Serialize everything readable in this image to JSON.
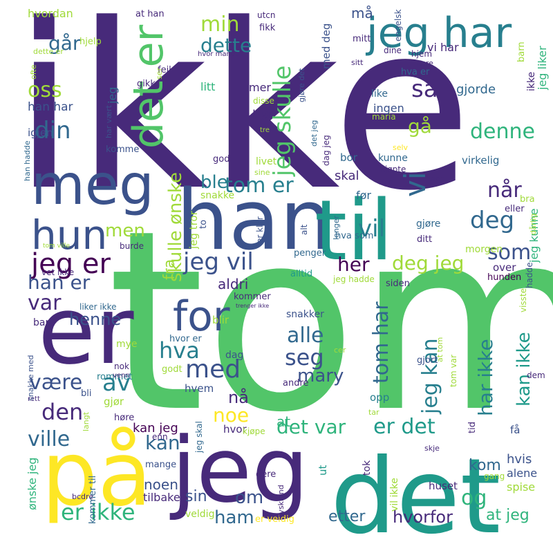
{
  "palette": {
    "dark_purple": "#472a7a",
    "indigo": "#3b528b",
    "slate_blue": "#31688e",
    "teal_blue": "#277f8e",
    "teal": "#1f9a8a",
    "green_teal": "#2fb47c",
    "green": "#52c569",
    "lime": "#a0da39",
    "yellow": "#fde725",
    "deep_purple": "#440154"
  },
  "words": [
    {
      "text": "ikke",
      "color": "#472a7a"
    },
    {
      "text": "tom",
      "color": "#52c569"
    },
    {
      "text": "jeg",
      "color": "#472a7a"
    },
    {
      "text": "det",
      "color": "#1f9a8a"
    },
    {
      "text": "på",
      "color": "#fde725"
    },
    {
      "text": "er",
      "color": "#472a7a"
    },
    {
      "text": "han",
      "color": "#3b528b"
    },
    {
      "text": "til",
      "color": "#1f9a8a"
    },
    {
      "text": "meg",
      "color": "#3b528b"
    },
    {
      "text": "jeg har",
      "color": "#277f8e"
    },
    {
      "text": "det er",
      "color": "#52c569"
    },
    {
      "text": "hun",
      "color": "#3b528b"
    },
    {
      "text": "for",
      "color": "#3b528b"
    },
    {
      "text": "jeg er",
      "color": "#440154"
    },
    {
      "text": "jeg skulle",
      "color": "#52c569"
    },
    {
      "text": "skulle ønske",
      "color": "#a0da39"
    },
    {
      "text": "jeg vil",
      "color": "#3b528b"
    },
    {
      "text": "tom er",
      "color": "#277f8e"
    },
    {
      "text": "min",
      "color": "#a0da39"
    },
    {
      "text": "dette",
      "color": "#277f8e"
    },
    {
      "text": "din",
      "color": "#31688e"
    },
    {
      "text": "oss",
      "color": "#a0da39"
    },
    {
      "text": "går",
      "color": "#31688e"
    },
    {
      "text": "så",
      "color": "#472a7a"
    },
    {
      "text": "vi",
      "color": "#31688e"
    },
    {
      "text": "deg",
      "color": "#31688e"
    },
    {
      "text": "vil",
      "color": "#277f8e"
    },
    {
      "text": "når",
      "color": "#472a7a"
    },
    {
      "text": "som",
      "color": "#3b528b"
    },
    {
      "text": "denne",
      "color": "#2fb47c"
    },
    {
      "text": "gå",
      "color": "#a0da39"
    },
    {
      "text": "deg jeg",
      "color": "#a0da39"
    },
    {
      "text": "her",
      "color": "#440154"
    },
    {
      "text": "han er",
      "color": "#3b528b"
    },
    {
      "text": "var",
      "color": "#472a7a"
    },
    {
      "text": "henne",
      "color": "#3b528b"
    },
    {
      "text": "men",
      "color": "#a0da39"
    },
    {
      "text": "ble",
      "color": "#277f8e"
    },
    {
      "text": "fra",
      "color": "#a0da39"
    },
    {
      "text": "aldri",
      "color": "#472a7a"
    },
    {
      "text": "hva",
      "color": "#277f8e"
    },
    {
      "text": "med",
      "color": "#3b528b"
    },
    {
      "text": "av",
      "color": "#277f8e"
    },
    {
      "text": "alle",
      "color": "#31688e"
    },
    {
      "text": "seg",
      "color": "#3b528b"
    },
    {
      "text": "mary",
      "color": "#3b528b"
    },
    {
      "text": "tom har",
      "color": "#31688e"
    },
    {
      "text": "jeg kan",
      "color": "#277f8e"
    },
    {
      "text": "har ikke",
      "color": "#277f8e"
    },
    {
      "text": "kan ikke",
      "color": "#1f9a8a"
    },
    {
      "text": "være",
      "color": "#3b528b"
    },
    {
      "text": "den",
      "color": "#472a7a"
    },
    {
      "text": "noe",
      "color": "#fde725"
    },
    {
      "text": "nå",
      "color": "#472a7a"
    },
    {
      "text": "ville",
      "color": "#31688e"
    },
    {
      "text": "det var",
      "color": "#2fb47c"
    },
    {
      "text": "er det",
      "color": "#1f9a8a"
    },
    {
      "text": "kan",
      "color": "#31688e"
    },
    {
      "text": "om",
      "color": "#3b528b"
    },
    {
      "text": "og",
      "color": "#2fb47c"
    },
    {
      "text": "er ikke",
      "color": "#2fb47c"
    },
    {
      "text": "ham",
      "color": "#31688e"
    },
    {
      "text": "etter",
      "color": "#31688e"
    },
    {
      "text": "hvorfor",
      "color": "#472a7a"
    },
    {
      "text": "at jeg",
      "color": "#2fb47c"
    },
    {
      "text": "kom",
      "color": "#31688e"
    },
    {
      "text": "hvis",
      "color": "#3b528b"
    },
    {
      "text": "alene",
      "color": "#3b528b"
    },
    {
      "text": "spise",
      "color": "#a0da39"
    },
    {
      "text": "sin",
      "color": "#3b528b"
    },
    {
      "text": "noen",
      "color": "#3b528b"
    },
    {
      "text": "tilbake",
      "color": "#472a7a"
    },
    {
      "text": "kan jeg",
      "color": "#440154"
    },
    {
      "text": "hvordan",
      "color": "#a0da39"
    },
    {
      "text": "hjelp",
      "color": "#a0da39"
    },
    {
      "text": "at han",
      "color": "#472a7a"
    },
    {
      "text": "utcn",
      "color": "#472a7a"
    },
    {
      "text": "fikk",
      "color": "#472a7a"
    },
    {
      "text": "med deg",
      "color": "#3b528b"
    },
    {
      "text": "mitt",
      "color": "#472a7a"
    },
    {
      "text": "engelsk",
      "color": "#3b528b"
    },
    {
      "text": "vi har",
      "color": "#472a7a"
    },
    {
      "text": "barn",
      "color": "#a0da39"
    },
    {
      "text": "jeg liker",
      "color": "#2fb47c"
    },
    {
      "text": "feil",
      "color": "#472a7a"
    },
    {
      "text": "gikk",
      "color": "#472a7a"
    },
    {
      "text": "mer",
      "color": "#472a7a"
    },
    {
      "text": "bør",
      "color": "#472a7a"
    },
    {
      "text": "ingen",
      "color": "#3b528b"
    },
    {
      "text": "gjorde",
      "color": "#31688e"
    },
    {
      "text": "hva er",
      "color": "#31688e"
    },
    {
      "text": "like",
      "color": "#31688e"
    },
    {
      "text": "maria",
      "color": "#a0da39"
    },
    {
      "text": "han har",
      "color": "#3b528b"
    },
    {
      "text": "igjen",
      "color": "#3b528b"
    },
    {
      "text": "komme",
      "color": "#3b528b"
    },
    {
      "text": "god",
      "color": "#472a7a"
    },
    {
      "text": "livet",
      "color": "#a0da39"
    },
    {
      "text": "virkelig",
      "color": "#31688e"
    },
    {
      "text": "skal",
      "color": "#472a7a"
    },
    {
      "text": "bor",
      "color": "#31688e"
    },
    {
      "text": "kunne",
      "color": "#31688e"
    },
    {
      "text": "kjøpte",
      "color": "#472a7a"
    },
    {
      "text": "før",
      "color": "#31688e"
    },
    {
      "text": "snakke",
      "color": "#a0da39"
    },
    {
      "text": "gjøre",
      "color": "#31688e"
    },
    {
      "text": "morgen",
      "color": "#a0da39"
    },
    {
      "text": "eller",
      "color": "#472a7a"
    },
    {
      "text": "bra",
      "color": "#a0da39"
    },
    {
      "text": "jeg kunne",
      "color": "#2fb47c"
    },
    {
      "text": "hva som",
      "color": "#31688e"
    },
    {
      "text": "ditt",
      "color": "#472a7a"
    },
    {
      "text": "over",
      "color": "#472a7a"
    },
    {
      "text": "penger",
      "color": "#31688e"
    },
    {
      "text": "alltid",
      "color": "#1f9a8a"
    },
    {
      "text": "jeg hadde",
      "color": "#a0da39"
    },
    {
      "text": "siden",
      "color": "#472a7a"
    },
    {
      "text": "hunden",
      "color": "#440154"
    },
    {
      "text": "kommer",
      "color": "#472a7a"
    },
    {
      "text": "bare",
      "color": "#472a7a"
    },
    {
      "text": "snakker",
      "color": "#3b528b"
    },
    {
      "text": "blir",
      "color": "#a0da39"
    },
    {
      "text": "hvor er",
      "color": "#31688e"
    },
    {
      "text": "dag",
      "color": "#3b528b"
    },
    {
      "text": "mye",
      "color": "#a0da39"
    },
    {
      "text": "rommet",
      "color": "#277f8e"
    },
    {
      "text": "nok",
      "color": "#472a7a"
    },
    {
      "text": "godt",
      "color": "#a0da39"
    },
    {
      "text": "hvem",
      "color": "#3b528b"
    },
    {
      "text": "andre",
      "color": "#472a7a"
    },
    {
      "text": "opp",
      "color": "#277f8e"
    },
    {
      "text": "gjør",
      "color": "#a0da39"
    },
    {
      "text": "høre",
      "color": "#472a7a"
    },
    {
      "text": "mange",
      "color": "#3b528b"
    },
    {
      "text": "enn",
      "color": "#472a7a"
    },
    {
      "text": "hvor",
      "color": "#472a7a"
    },
    {
      "text": "kjøpe",
      "color": "#a0da39"
    },
    {
      "text": "at",
      "color": "#2fb47c"
    },
    {
      "text": "få",
      "color": "#3b528b"
    },
    {
      "text": "ut",
      "color": "#1f9a8a"
    },
    {
      "text": "dere",
      "color": "#472a7a"
    },
    {
      "text": "huset",
      "color": "#472a7a"
    },
    {
      "text": "gang",
      "color": "#a0da39"
    },
    {
      "text": "veldig",
      "color": "#a0da39"
    },
    {
      "text": "er veldig",
      "color": "#fde725"
    },
    {
      "text": "tok",
      "color": "#472a7a"
    },
    {
      "text": "vil ikke",
      "color": "#a0da39"
    },
    {
      "text": "tyskland",
      "color": "#472a7a"
    },
    {
      "text": "ønske jeg",
      "color": "#2fb47c"
    },
    {
      "text": "kommer til",
      "color": "#31688e"
    },
    {
      "text": "bli",
      "color": "#3b528b"
    },
    {
      "text": "rett",
      "color": "#472a7a"
    },
    {
      "text": "venn",
      "color": "#472a7a"
    },
    {
      "text": "dem",
      "color": "#472a7a"
    },
    {
      "text": "burde",
      "color": "#472a7a"
    },
    {
      "text": "tom ville",
      "color": "#a0da39"
    },
    {
      "text": "vet ikke",
      "color": "#472a7a"
    },
    {
      "text": "liker ikke",
      "color": "#31688e"
    },
    {
      "text": "tom var",
      "color": "#a0da39"
    },
    {
      "text": "gjort",
      "color": "#3b528b"
    },
    {
      "text": "hadde",
      "color": "#3b528b"
    },
    {
      "text": "er klar",
      "color": "#3b528b"
    },
    {
      "text": "alt",
      "color": "#3b528b"
    },
    {
      "text": "inn",
      "color": "#472a7a"
    },
    {
      "text": "sier",
      "color": "#472a7a"
    },
    {
      "text": "dårlig",
      "color": "#a0da39"
    },
    {
      "text": "hjem",
      "color": "#472a7a"
    },
    {
      "text": "dine",
      "color": "#472a7a"
    },
    {
      "text": "ofte",
      "color": "#a0da39"
    },
    {
      "text": "disse",
      "color": "#a0da39"
    },
    {
      "text": "tre",
      "color": "#a0da39"
    },
    {
      "text": "sine",
      "color": "#a0da39"
    },
    {
      "text": "selv",
      "color": "#fde725"
    },
    {
      "text": "har vært",
      "color": "#3b528b"
    },
    {
      "text": "han hadde",
      "color": "#31688e"
    },
    {
      "text": "lenger",
      "color": "#31688e"
    },
    {
      "text": "det jeg",
      "color": "#31688e"
    },
    {
      "text": "to",
      "color": "#3b528b"
    },
    {
      "text": "skje",
      "color": "#472a7a"
    },
    {
      "text": "tar",
      "color": "#a0da39"
    },
    {
      "text": "cer",
      "color": "#a0da39"
    },
    {
      "text": "at tom",
      "color": "#a0da39"
    },
    {
      "text": "bcdre",
      "color": "#472a7a"
    },
    {
      "text": "langt",
      "color": "#a0da39"
    },
    {
      "text": "snakke med",
      "color": "#3b528b"
    },
    {
      "text": "trenger ikke",
      "color": "#472a7a"
    },
    {
      "text": "gjøre det",
      "color": "#3b528b"
    },
    {
      "text": "ser",
      "color": "#a0da39"
    },
    {
      "text": "sitt",
      "color": "#472a7a"
    },
    {
      "text": "lære",
      "color": "#472a7a"
    },
    {
      "text": "hvor mange",
      "color": "#472a7a"
    },
    {
      "text": "dette er",
      "color": "#a0da39"
    },
    {
      "text": "jeg tror",
      "color": "#a0da39"
    },
    {
      "text": "jeg",
      "color": "#31688e"
    },
    {
      "text": "litt",
      "color": "#2fb47c"
    },
    {
      "text": "må",
      "color": "#3b528b"
    },
    {
      "text": "tid",
      "color": "#472a7a"
    },
    {
      "text": "visste",
      "color": "#a0da39"
    },
    {
      "text": "ikke",
      "color": "#472a7a"
    },
    {
      "text": "jeg skal",
      "color": "#31688e"
    },
    {
      "text": "dag jeg",
      "color": "#472a7a"
    }
  ]
}
